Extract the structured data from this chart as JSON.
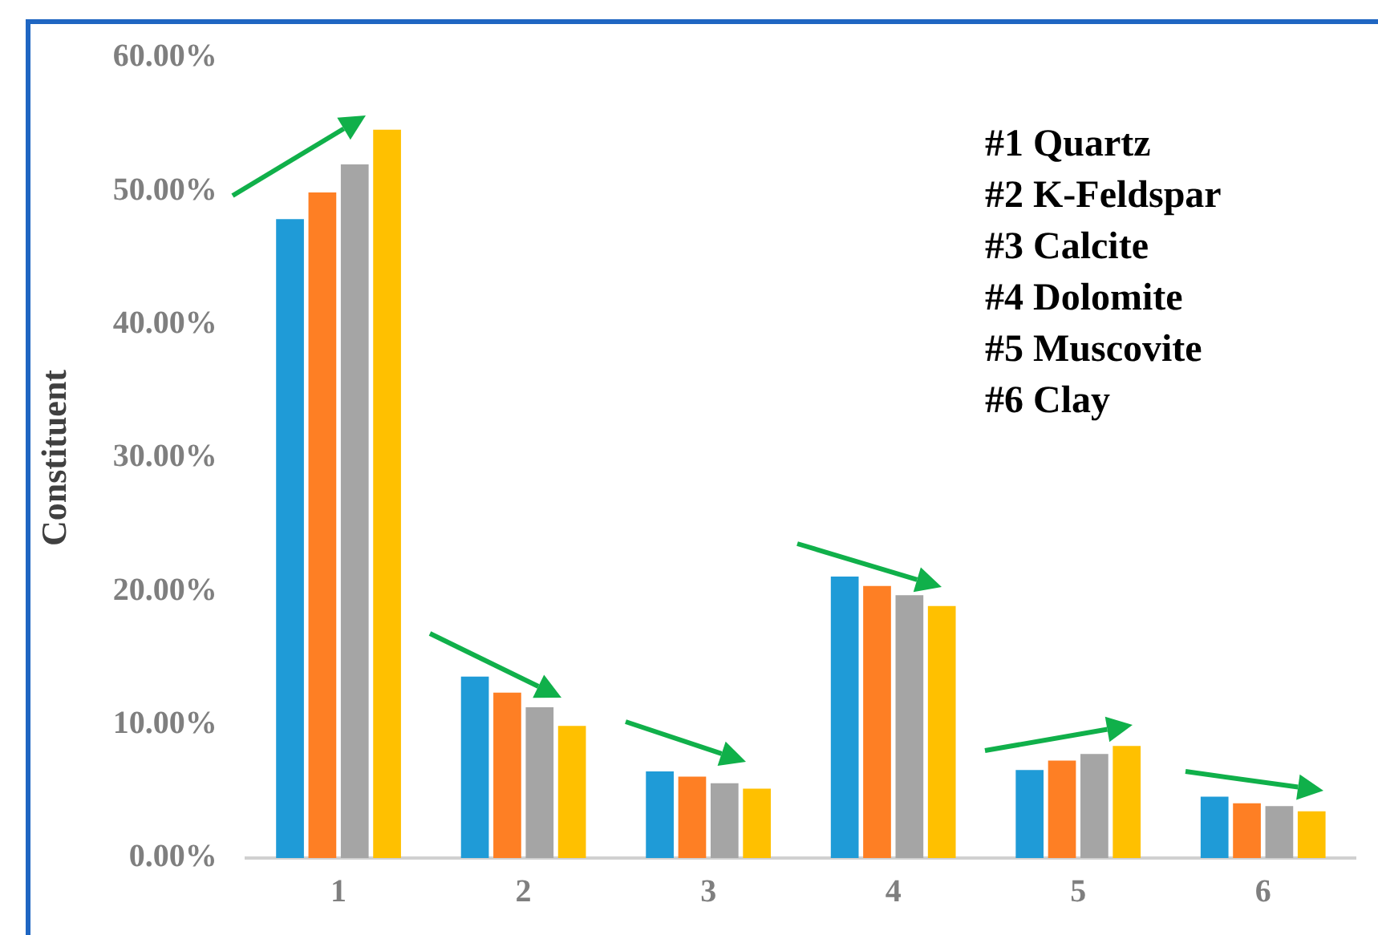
{
  "chart_data": {
    "type": "bar",
    "ylabel": "Constituent",
    "categories": [
      "1",
      "2",
      "3",
      "4",
      "5",
      "6"
    ],
    "series": [
      {
        "color": "#1f9bd7",
        "values": [
          47.9,
          13.6,
          6.5,
          21.1,
          6.6,
          4.6
        ]
      },
      {
        "color": "#fe7f24",
        "values": [
          49.9,
          12.4,
          6.1,
          20.4,
          7.3,
          4.1
        ]
      },
      {
        "color": "#a5a5a5",
        "values": [
          52.0,
          11.3,
          5.6,
          19.7,
          7.8,
          3.9
        ]
      },
      {
        "color": "#ffc000",
        "values": [
          54.6,
          9.9,
          5.2,
          18.9,
          8.4,
          3.5
        ]
      }
    ],
    "ylim": [
      0,
      60
    ],
    "yticks": [
      {
        "value": 0,
        "label": "0.00%"
      },
      {
        "value": 10,
        "label": "10.00%"
      },
      {
        "value": 20,
        "label": "20.00%"
      },
      {
        "value": 30,
        "label": "30.00%"
      },
      {
        "value": 40,
        "label": "40.00%"
      },
      {
        "value": 50,
        "label": "50.00%"
      },
      {
        "value": 60,
        "label": "60.00%"
      }
    ],
    "grid": false,
    "legend": false,
    "annotations": [
      "#1 Quartz",
      "#2 K-Feldspar",
      "#3 Calcite",
      "#4 Dolomite",
      "#5 Muscovite",
      "#6 Clay"
    ]
  }
}
